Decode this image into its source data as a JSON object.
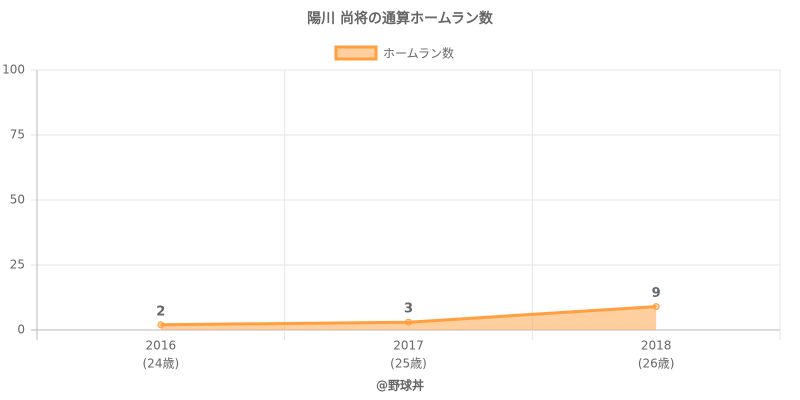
{
  "chart_data": {
    "type": "line",
    "title": "陽川 尚将の通算ホームラン数",
    "categories": [
      "2016",
      "2017",
      "2018"
    ],
    "category_sublabels": [
      "(24歳)",
      "(25歳)",
      "(26歳)"
    ],
    "series": [
      {
        "name": "ホームラン数",
        "color": "#ff9f40",
        "fill_color": "rgba(255,159,64,0.5)",
        "values": [
          2,
          3,
          9
        ]
      }
    ],
    "xlabel": "@野球丼",
    "ylim": [
      0,
      100
    ],
    "yticks": [
      0,
      25,
      50,
      75,
      100
    ],
    "grid": true,
    "legend": "top",
    "data_labels": true
  }
}
